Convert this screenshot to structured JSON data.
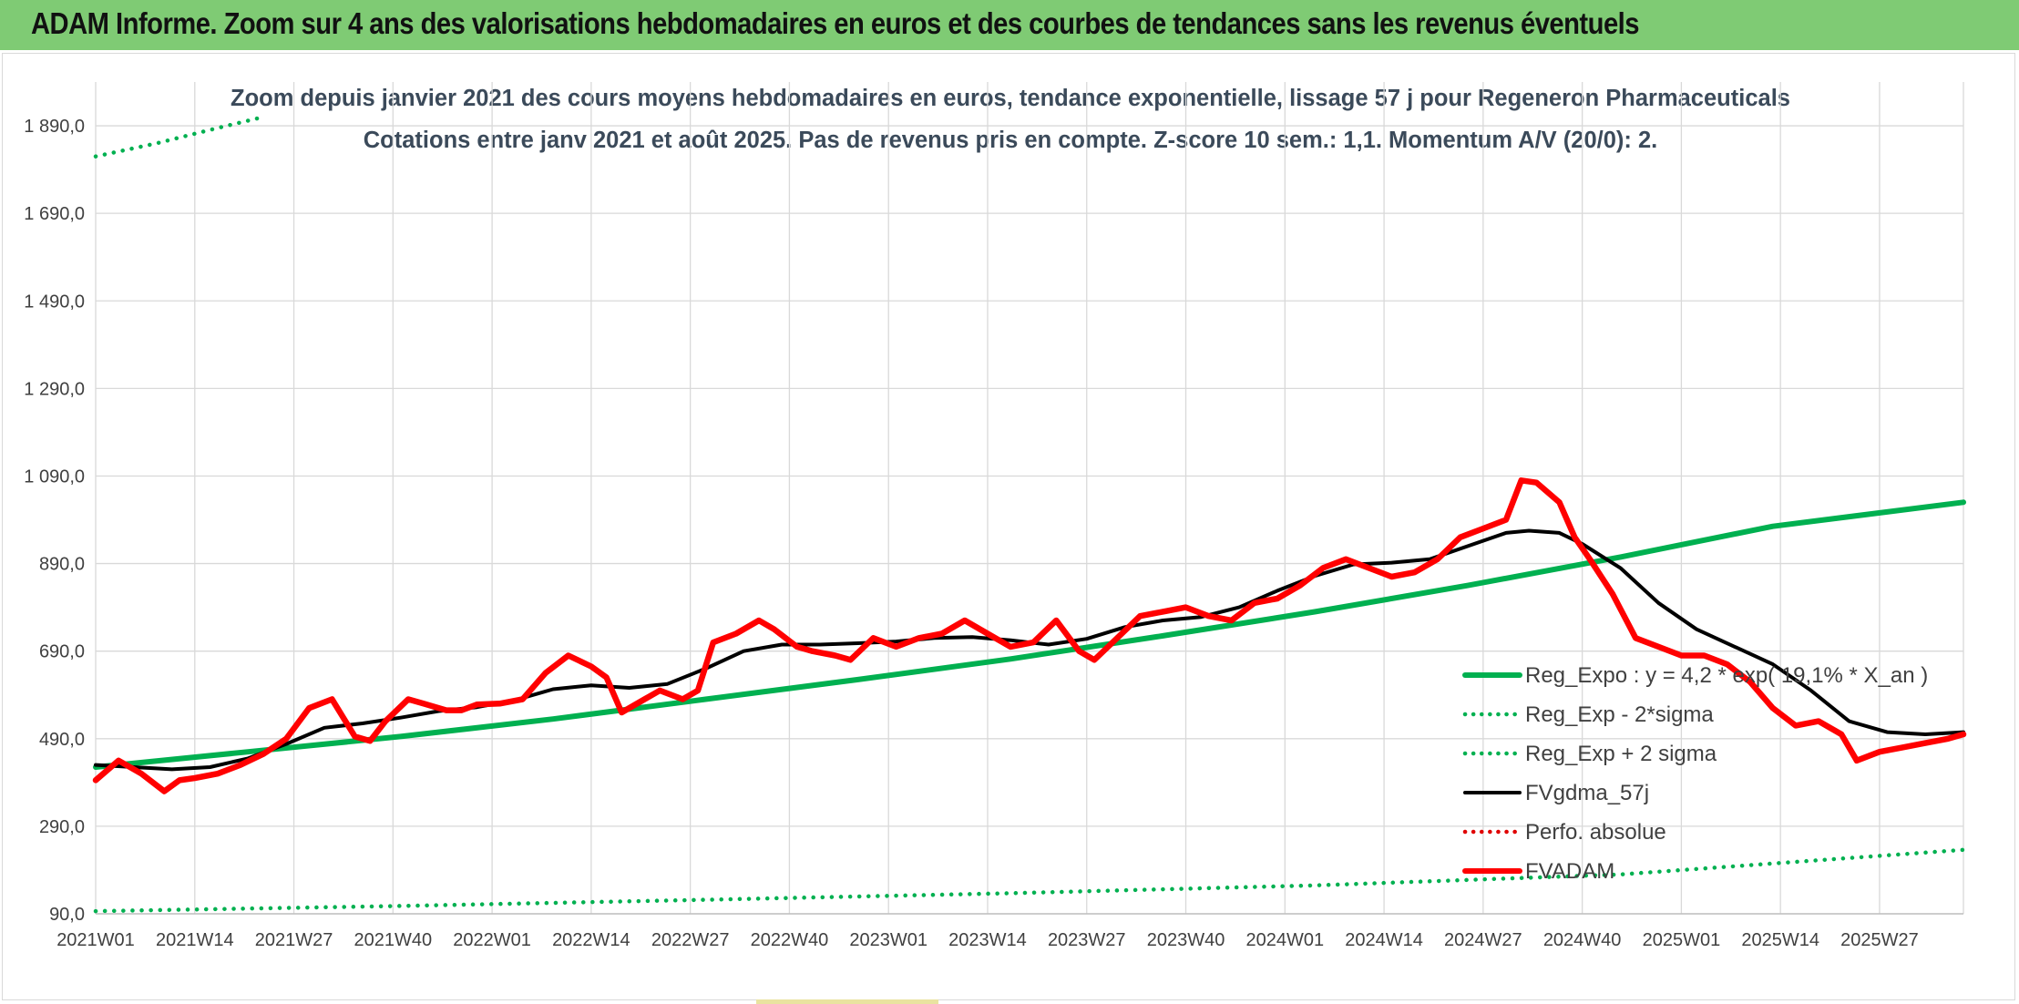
{
  "banner": {
    "title": "ADAM Informe. Zoom sur 4 ans des valorisations hebdomadaires en euros et des courbes de tendances sans les revenus éventuels"
  },
  "colors": {
    "banner_bg": "#7fcb74",
    "green": "#00b050",
    "black": "#000000",
    "red": "#ff0000",
    "dotted_red": "#e00000",
    "gridline": "#d9d9d9"
  },
  "chart_data": {
    "type": "line",
    "title": "Zoom depuis janvier 2021 des cours moyens hebdomadaires en euros, tendance exponentielle, lissage 57 j pour Regeneron Pharmaceuticals",
    "subtitle": "Cotations entre janv 2021 et août 2025. Pas de revenus pris en compte. Z-score 10 sem.: 1,1. Momentum A/V (20/0): 2.",
    "xlabel": "",
    "ylabel": "",
    "ylim": [
      90,
      1990
    ],
    "grid": true,
    "legend_position": "lower-right",
    "y_ticks": [
      "90,0",
      "290,0",
      "490,0",
      "690,0",
      "890,0",
      "1 090,0",
      "1 290,0",
      "1 490,0",
      "1 690,0",
      "1 890,0"
    ],
    "y_tick_values": [
      90,
      290,
      490,
      690,
      890,
      1090,
      1290,
      1490,
      1690,
      1890
    ],
    "x_ticks": [
      "2021W01",
      "2021W14",
      "2021W27",
      "2021W40",
      "2022W01",
      "2022W14",
      "2022W27",
      "2022W40",
      "2023W01",
      "2023W14",
      "2023W27",
      "2023W40",
      "2024W01",
      "2024W14",
      "2024W27",
      "2024W40",
      "2025W01",
      "2025W14",
      "2025W27"
    ],
    "x_tick_weeks": [
      0,
      13,
      26,
      39,
      52,
      65,
      78,
      91,
      104,
      117,
      130,
      143,
      156,
      169,
      182,
      195,
      208,
      221,
      234
    ],
    "series": [
      {
        "name": "Reg_Expo : y = 4,2 * exp( 19,1% * X_an )",
        "style": "solid-thick",
        "color": "#00b050",
        "x": [
          0,
          20,
          40,
          60,
          80,
          100,
          120,
          140,
          160,
          180,
          200,
          220,
          245
        ],
        "y": [
          425,
          460,
          495,
          535,
          580,
          625,
          672,
          725,
          780,
          840,
          905,
          975,
          1030
        ]
      },
      {
        "name": "Reg_Exp - 2*sigma",
        "style": "dotted",
        "color": "#00b050",
        "x": [
          0,
          40,
          80,
          120,
          160,
          200,
          245
        ],
        "y": [
          96,
          108,
          122,
          137,
          155,
          180,
          236
        ]
      },
      {
        "name": "Reg_Exp + 2 sigma",
        "style": "dotted",
        "color": "#00b050",
        "x": [
          0,
          8,
          16,
          22
        ],
        "y": [
          1820,
          1850,
          1885,
          1910
        ]
      },
      {
        "name": "FVgdma_57j",
        "style": "solid",
        "color": "#000000",
        "x": [
          0,
          5,
          10,
          15,
          20,
          25,
          30,
          35,
          40,
          45,
          50,
          55,
          60,
          65,
          70,
          75,
          80,
          85,
          90,
          95,
          100,
          105,
          110,
          115,
          120,
          125,
          130,
          135,
          140,
          145,
          150,
          155,
          160,
          165,
          170,
          175,
          180,
          185,
          188,
          192,
          195,
          200,
          205,
          210,
          215,
          220,
          225,
          230,
          235,
          240,
          245
        ],
        "y": [
          430,
          425,
          420,
          425,
          445,
          478,
          515,
          525,
          538,
          553,
          562,
          578,
          603,
          612,
          606,
          615,
          650,
          690,
          705,
          705,
          708,
          712,
          720,
          722,
          715,
          705,
          718,
          745,
          760,
          768,
          790,
          828,
          862,
          888,
          892,
          900,
          930,
          960,
          965,
          960,
          935,
          880,
          800,
          740,
          700,
          660,
          600,
          530,
          505,
          500,
          505
        ]
      },
      {
        "name": "Perfo. absolue",
        "style": "dotted",
        "color": "#e00000",
        "x": [],
        "y": []
      },
      {
        "name": "FVADAM",
        "style": "solid-thick",
        "color": "#ff0000",
        "x": [
          0,
          3,
          6,
          9,
          11,
          13,
          16,
          19,
          22,
          25,
          28,
          31,
          34,
          36,
          38,
          41,
          43,
          46,
          48,
          50,
          53,
          56,
          59,
          62,
          65,
          67,
          69,
          72,
          74,
          77,
          79,
          81,
          84,
          87,
          89,
          92,
          94,
          97,
          99,
          102,
          105,
          108,
          111,
          114,
          117,
          120,
          123,
          126,
          129,
          131,
          134,
          137,
          140,
          143,
          146,
          149,
          152,
          155,
          158,
          161,
          164,
          167,
          170,
          173,
          176,
          179,
          182,
          185,
          187,
          189,
          192,
          194,
          196,
          199,
          202,
          205,
          208,
          211,
          214,
          217,
          220,
          223,
          226,
          229,
          231,
          234,
          237,
          240,
          243,
          245
        ],
        "y": [
          395,
          440,
          410,
          370,
          395,
          400,
          410,
          430,
          455,
          490,
          560,
          580,
          495,
          485,
          530,
          580,
          570,
          555,
          555,
          568,
          570,
          580,
          640,
          680,
          655,
          630,
          550,
          580,
          600,
          580,
          600,
          710,
          730,
          760,
          740,
          700,
          690,
          680,
          670,
          720,
          700,
          720,
          730,
          760,
          730,
          700,
          710,
          760,
          690,
          670,
          720,
          770,
          780,
          790,
          770,
          760,
          800,
          810,
          840,
          880,
          900,
          880,
          860,
          870,
          900,
          950,
          970,
          990,
          1080,
          1075,
          1030,
          950,
          900,
          820,
          720,
          700,
          680,
          680,
          660,
          620,
          560,
          520,
          530,
          500,
          440,
          460,
          470,
          480,
          490,
          500
        ]
      }
    ]
  },
  "legend": [
    {
      "label": "Reg_Expo : y = 4,2 * exp( 19,1% * X_an )",
      "style": "solid-thick",
      "color": "#00b050"
    },
    {
      "label": "Reg_Exp - 2*sigma",
      "style": "dotted",
      "color": "#00b050"
    },
    {
      "label": "Reg_Exp + 2 sigma",
      "style": "dotted",
      "color": "#00b050"
    },
    {
      "label": "FVgdma_57j",
      "style": "solid",
      "color": "#000000"
    },
    {
      "label": "Perfo. absolue",
      "style": "dotted",
      "color": "#e00000"
    },
    {
      "label": "FVADAM",
      "style": "solid-thick",
      "color": "#ff0000"
    }
  ]
}
